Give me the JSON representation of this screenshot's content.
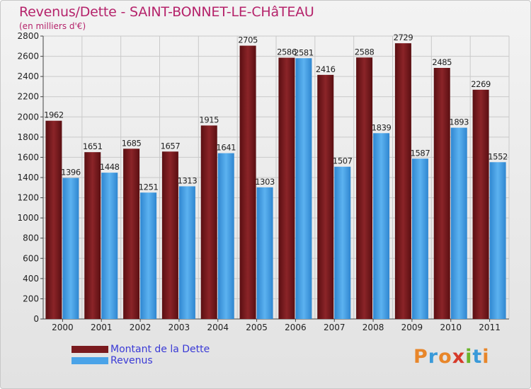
{
  "title": "Revenus/Dette - SAINT-BONNET-LE-CHâTEAU",
  "subtitle": "(en milliers d'€)",
  "brand": "Proxiti",
  "colors": {
    "dette": "#7a1a1e",
    "revenus": "#4aa3e8",
    "title": "#b5236b",
    "legend_text": "#3a3ad6"
  },
  "legend": [
    {
      "label": "Montant de la Dette",
      "color": "#7a1a1e"
    },
    {
      "label": "Revenus",
      "color": "#4aa3e8"
    }
  ],
  "chart_data": {
    "type": "bar",
    "title": "Revenus/Dette - SAINT-BONNET-LE-CHâTEAU",
    "subtitle": "(en milliers d'€)",
    "categories": [
      "2000",
      "2001",
      "2002",
      "2003",
      "2004",
      "2005",
      "2006",
      "2007",
      "2008",
      "2009",
      "2010",
      "2011"
    ],
    "series": [
      {
        "name": "Montant de la Dette",
        "values": [
          1962,
          1651,
          1685,
          1657,
          1915,
          2705,
          2586,
          2416,
          2588,
          2729,
          2485,
          2269
        ]
      },
      {
        "name": "Revenus",
        "values": [
          1396,
          1448,
          1251,
          1313,
          1641,
          1303,
          2581,
          1507,
          1839,
          1587,
          1893,
          1552
        ]
      }
    ],
    "ylim": [
      0,
      2800
    ],
    "yticks": [
      0,
      200,
      400,
      600,
      800,
      1000,
      1200,
      1400,
      1600,
      1800,
      2000,
      2200,
      2400,
      2600,
      2800
    ],
    "grid": true,
    "legend_position": "bottom-left"
  }
}
